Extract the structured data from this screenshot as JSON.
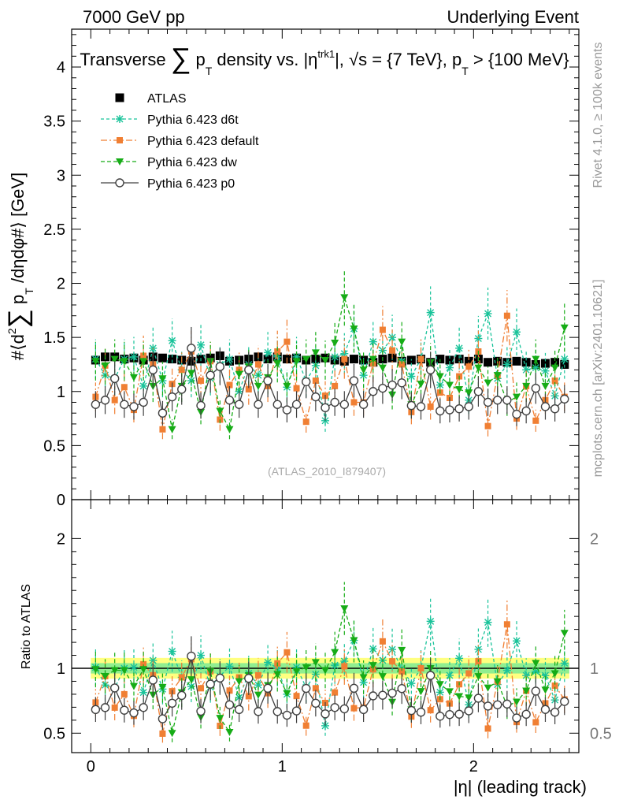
{
  "header": {
    "left": "7000 GeV pp",
    "right": "Underlying Event"
  },
  "side_labels": {
    "rivet": "Rivet 4.1.0, ≥ 100k events",
    "mcplots": "mcplots.cern.ch [arXiv:2401.10621]"
  },
  "watermark": "(ATLAS_2010_I879407)",
  "colors": {
    "atlas": "#000000",
    "d6t": "#19c39a",
    "default": "#f07f33",
    "dw": "#16ac16",
    "p0": "#404040",
    "band_outer": "#ffff80",
    "band_inner": "#90ee90"
  },
  "chart_data": [
    {
      "type": "scatter",
      "panel": "main",
      "title_parts": {
        "t1": "Transverse ",
        "sum": "∑",
        "t2": " p",
        "t2sub": "T",
        "t3": " density vs. |η",
        "t3sup": "trk1",
        "t4": "|, √s = {7 TeV}, p",
        "t4sub": "T",
        "t5": " > {100 MeV}"
      },
      "ylabel_parts": {
        "a": "#⟨d",
        "asup": "2",
        "b": "∑",
        "c": " p",
        "csub": "T",
        "d": " /dηdφ#⟩ [GeV]"
      },
      "xlim": [
        -0.1,
        2.55
      ],
      "ylim": [
        0,
        4.35
      ],
      "yticks": [
        0,
        0.5,
        1,
        1.5,
        2,
        2.5,
        3,
        3.5,
        4
      ],
      "ytick_labels": [
        "0",
        "0.5",
        "1",
        "1.5",
        "2",
        "2.5",
        "3",
        "3.5",
        "4"
      ],
      "legend": {
        "position": "top-left",
        "entries": [
          {
            "key": "atlas",
            "label": "ATLAS"
          },
          {
            "key": "d6t",
            "label": "Pythia 6.423 d6t"
          },
          {
            "key": "default",
            "label": "Pythia 6.423 default"
          },
          {
            "key": "dw",
            "label": "Pythia 6.423 dw"
          },
          {
            "key": "p0",
            "label": "Pythia 6.423 p0"
          }
        ]
      },
      "x": [
        0.025,
        0.075,
        0.125,
        0.175,
        0.225,
        0.275,
        0.325,
        0.375,
        0.425,
        0.475,
        0.525,
        0.575,
        0.625,
        0.675,
        0.725,
        0.775,
        0.825,
        0.875,
        0.925,
        0.975,
        1.025,
        1.075,
        1.125,
        1.175,
        1.225,
        1.275,
        1.325,
        1.375,
        1.425,
        1.475,
        1.525,
        1.575,
        1.625,
        1.675,
        1.725,
        1.775,
        1.825,
        1.875,
        1.925,
        1.975,
        2.025,
        2.075,
        2.125,
        2.175,
        2.225,
        2.275,
        2.325,
        2.375,
        2.425,
        2.475
      ],
      "series": [
        {
          "key": "atlas",
          "name": "ATLAS",
          "values": [
            1.29,
            1.32,
            1.32,
            1.3,
            1.31,
            1.29,
            1.32,
            1.31,
            1.3,
            1.29,
            1.28,
            1.3,
            1.31,
            1.33,
            1.28,
            1.29,
            1.3,
            1.32,
            1.3,
            1.32,
            1.3,
            1.31,
            1.29,
            1.3,
            1.31,
            1.29,
            1.28,
            1.3,
            1.29,
            1.27,
            1.3,
            1.31,
            1.28,
            1.29,
            1.3,
            1.27,
            1.3,
            1.29,
            1.3,
            1.28,
            1.3,
            1.27,
            1.28,
            1.27,
            1.28,
            1.27,
            1.25,
            1.26,
            1.27,
            1.25
          ]
        },
        {
          "key": "d6t",
          "name": "Pythia 6.423 d6t",
          "values": [
            1.3,
            1.15,
            1.12,
            1.3,
            1.32,
            1.05,
            1.4,
            1.1,
            1.47,
            1.2,
            1.1,
            1.43,
            1.12,
            1.25,
            1.3,
            1.0,
            1.25,
            1.15,
            1.36,
            1.32,
            1.04,
            1.32,
            1.1,
            1.24,
            0.73,
            1.32,
            1.35,
            1.58,
            1.15,
            1.46,
            1.38,
            1.5,
            1.28,
            1.14,
            1.3,
            1.73,
            1.06,
            1.22,
            1.4,
            0.92,
            1.49,
            1.72,
            1.12,
            1.25,
            1.55,
            1.2,
            1.22,
            1.19,
            0.96,
            1.3
          ]
        },
        {
          "key": "default",
          "name": "Pythia 6.423 default",
          "values": [
            0.95,
            1.24,
            0.92,
            1.04,
            0.83,
            1.33,
            1.25,
            0.65,
            1.07,
            1.2,
            1.37,
            1.1,
            1.28,
            0.74,
            1.06,
            1.2,
            1.02,
            1.25,
            1.05,
            1.37,
            1.46,
            1.03,
            0.72,
            1.1,
            0.96,
            1.05,
            1.3,
            0.9,
            0.9,
            1.26,
            1.57,
            1.38,
            1.25,
            0.81,
            1.3,
            0.86,
            0.99,
            0.94,
            1.14,
            1.23,
            1.37,
            0.68,
            1.15,
            1.7,
            0.75,
            1.05,
            0.73,
            0.92,
            1.1,
            0.95
          ]
        },
        {
          "key": "dw",
          "name": "Pythia 6.423 dw",
          "values": [
            1.28,
            1.24,
            1.3,
            1.28,
            1.13,
            1.28,
            1.05,
            1.12,
            0.65,
            1.05,
            1.17,
            0.81,
            1.28,
            0.82,
            0.65,
            1.16,
            1.23,
            1.05,
            1.13,
            1.26,
            1.05,
            1.28,
            1.3,
            1.36,
            1.29,
            1.45,
            1.87,
            1.58,
            1.2,
            1.3,
            1.22,
            0.97,
            1.46,
            0.88,
            1.07,
            1.27,
            1.14,
            1.06,
            1.02,
            0.99,
            1.22,
            1.08,
            1.15,
            0.9,
            0.95,
            1.05,
            1.3,
            1.05,
            1.22,
            1.59
          ]
        },
        {
          "key": "p0",
          "name": "Pythia 6.423 p0",
          "values": [
            0.88,
            0.92,
            1.12,
            0.88,
            0.86,
            0.9,
            1.2,
            0.8,
            0.95,
            1.02,
            1.4,
            0.87,
            1.15,
            1.23,
            0.92,
            0.88,
            1.2,
            0.88,
            1.1,
            0.88,
            0.83,
            0.88,
            1.09,
            0.95,
            0.85,
            0.9,
            0.88,
            1.1,
            0.88,
            1.0,
            1.03,
            1.06,
            1.08,
            0.87,
            0.86,
            1.2,
            0.82,
            0.83,
            0.84,
            0.86,
            1.0,
            0.9,
            0.92,
            0.92,
            0.79,
            0.82,
            1.03,
            0.86,
            0.84,
            0.93
          ]
        }
      ]
    },
    {
      "type": "scatter",
      "panel": "ratio",
      "ylabel": "Ratio to ATLAS",
      "xlabel": "|η| (leading track)",
      "xlim": [
        -0.1,
        2.55
      ],
      "ylim": [
        0.35,
        2.3
      ],
      "yticks": [
        0.5,
        1,
        2
      ],
      "ytick_labels": [
        "0.5",
        "1",
        "2"
      ],
      "xticks": [
        0,
        1,
        2
      ],
      "xtick_labels": [
        "0",
        "1",
        "2"
      ],
      "band_inner_halfwidth": 0.04,
      "band_outer_halfwidth": 0.08
    }
  ]
}
